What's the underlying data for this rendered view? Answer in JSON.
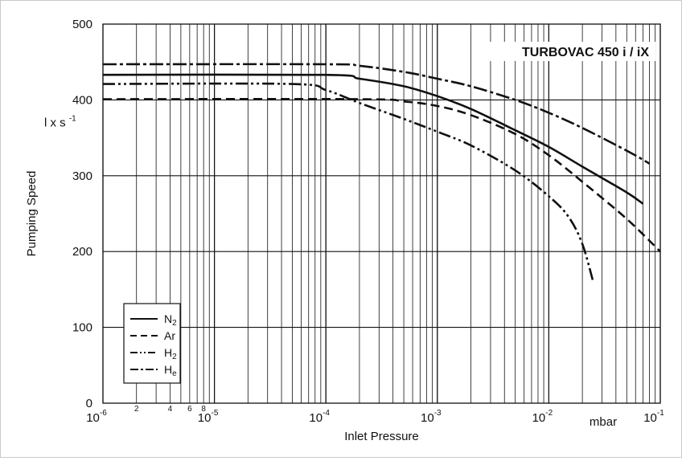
{
  "chart_data": {
    "type": "line",
    "title": "TURBOVAC 450 i / iX",
    "xlabel": "Inlet Pressure",
    "ylabel": "Pumping Speed",
    "yunit": {
      "base": "l x s",
      "exp": "-1"
    },
    "xunit": "mbar",
    "x_scale": "log",
    "xlim": [
      1e-06,
      0.1
    ],
    "ylim": [
      0,
      500
    ],
    "grid": true,
    "legend_position": "bottom-left",
    "y_ticks": [
      "0",
      "100",
      "200",
      "300",
      "400",
      "500"
    ],
    "x_major_ticks": [
      {
        "base": "10",
        "exp": "-6"
      },
      {
        "base": "10",
        "exp": "-5"
      },
      {
        "base": "10",
        "exp": "-4"
      },
      {
        "base": "10",
        "exp": "-3"
      },
      {
        "base": "10",
        "exp": "-2"
      },
      {
        "base": "10",
        "exp": "-1"
      }
    ],
    "x_minor_labels": [
      "2",
      "4",
      "6",
      "8"
    ],
    "series": [
      {
        "name": "N",
        "sub": "2",
        "dash": "solid",
        "x": [
          1e-06,
          0.0001,
          0.0002,
          0.0005,
          0.001,
          0.002,
          0.005,
          0.01,
          0.02,
          0.05,
          0.07
        ],
        "y": [
          433,
          433,
          428,
          418,
          405,
          388,
          360,
          338,
          312,
          278,
          263
        ]
      },
      {
        "name": "Ar",
        "sub": "",
        "dash": "dashed",
        "x": [
          1e-06,
          0.0002,
          0.0005,
          0.001,
          0.002,
          0.005,
          0.01,
          0.02,
          0.05,
          0.1
        ],
        "y": [
          401,
          401,
          398,
          392,
          380,
          355,
          327,
          292,
          243,
          200
        ]
      },
      {
        "name": "H",
        "sub": "2",
        "dash": "dash-dot-dot",
        "x": [
          1e-06,
          5e-05,
          0.0001,
          0.0002,
          0.0005,
          0.001,
          0.002,
          0.005,
          0.01,
          0.015,
          0.02,
          0.025
        ],
        "y": [
          421,
          421,
          413,
          396,
          375,
          358,
          340,
          307,
          273,
          246,
          210,
          160
        ]
      },
      {
        "name": "H",
        "sub": "e",
        "dash": "dash-dot",
        "x": [
          1e-06,
          0.0001,
          0.0002,
          0.0005,
          0.001,
          0.002,
          0.005,
          0.01,
          0.02,
          0.05,
          0.08
        ],
        "y": [
          447,
          447,
          445,
          437,
          428,
          418,
          400,
          383,
          363,
          333,
          316
        ]
      }
    ]
  }
}
